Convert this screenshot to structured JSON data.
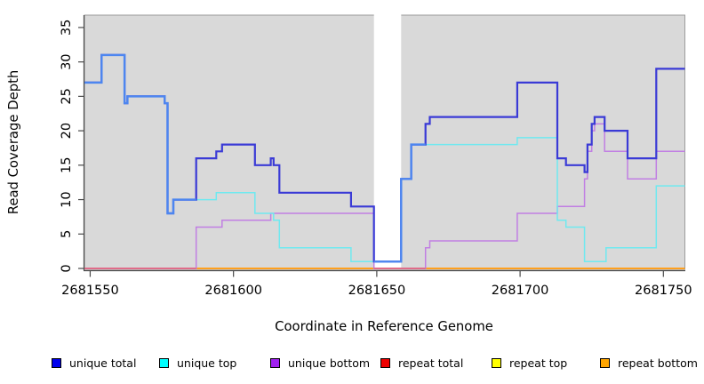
{
  "figure": {
    "background": "#FFFFFF",
    "panel_background": "#D9D9D9",
    "panel_border_color": "#9C9C9C",
    "axis_color": "#4A4A4A",
    "gap_band_color": "#FFFFFF"
  },
  "chart_data": {
    "type": "line",
    "style": "step",
    "title": "",
    "xlabel": "Coordinate in Reference Genome",
    "ylabel": "Read Coverage Depth",
    "xlim": [
      2681548,
      2681757.5
    ],
    "ylim": [
      0,
      36.8
    ],
    "x_ticks": [
      2681550,
      2681600,
      2681650,
      2681700,
      2681750
    ],
    "y_ticks": [
      0,
      5,
      10,
      15,
      20,
      25,
      30,
      35
    ],
    "grid": false,
    "legend_position": "bottom",
    "gap_region": {
      "from": 2681649,
      "to": 2681658.5
    },
    "series": [
      {
        "name": "unique total",
        "color": "#3A3AD6",
        "overlap_color": "#4D86F0",
        "overlap_ranges": [
          [
            2681548,
            2681587
          ],
          [
            2681649,
            2681667
          ]
        ],
        "breaks": [
          [
            2681548,
            27
          ],
          [
            2681554,
            31
          ],
          [
            2681562,
            24
          ],
          [
            2681563,
            25
          ],
          [
            2681576,
            24
          ],
          [
            2681577,
            8
          ],
          [
            2681579,
            10
          ],
          [
            2681587,
            16
          ],
          [
            2681594,
            17
          ],
          [
            2681596,
            18
          ],
          [
            2681607.5,
            15
          ],
          [
            2681613,
            16
          ],
          [
            2681614,
            15
          ],
          [
            2681616,
            11
          ],
          [
            2681641,
            9
          ],
          [
            2681649,
            1
          ],
          [
            2681658.5,
            13
          ],
          [
            2681662,
            18
          ],
          [
            2681667,
            21
          ],
          [
            2681668.5,
            22
          ],
          [
            2681699,
            27
          ],
          [
            2681713,
            16
          ],
          [
            2681716,
            15
          ],
          [
            2681722.5,
            14
          ],
          [
            2681723.5,
            18
          ],
          [
            2681725,
            21
          ],
          [
            2681726,
            22
          ],
          [
            2681729.5,
            20
          ],
          [
            2681737.5,
            16
          ],
          [
            2681747.5,
            29
          ]
        ]
      },
      {
        "name": "unique top",
        "color": "#6FE9F0",
        "breaks": [
          [
            2681548,
            27
          ],
          [
            2681554,
            31
          ],
          [
            2681562,
            24
          ],
          [
            2681563,
            25
          ],
          [
            2681576,
            24
          ],
          [
            2681577,
            8
          ],
          [
            2681579,
            10
          ],
          [
            2681594,
            11
          ],
          [
            2681607.5,
            8
          ],
          [
            2681614,
            7
          ],
          [
            2681616,
            3
          ],
          [
            2681641,
            1
          ],
          [
            2681658.5,
            13
          ],
          [
            2681662,
            18
          ],
          [
            2681699,
            19
          ],
          [
            2681713,
            7
          ],
          [
            2681716,
            6
          ],
          [
            2681722.5,
            1
          ],
          [
            2681730,
            3
          ],
          [
            2681747.5,
            12
          ]
        ]
      },
      {
        "name": "unique bottom",
        "color": "#C17FE3",
        "breaks": [
          [
            2681548,
            0
          ],
          [
            2681587,
            6
          ],
          [
            2681596,
            7
          ],
          [
            2681613,
            8
          ],
          [
            2681649,
            0
          ],
          [
            2681667,
            3
          ],
          [
            2681668.5,
            4
          ],
          [
            2681699,
            8
          ],
          [
            2681713,
            9
          ],
          [
            2681722.5,
            13
          ],
          [
            2681723.5,
            17
          ],
          [
            2681725,
            20
          ],
          [
            2681726,
            21
          ],
          [
            2681729.5,
            17
          ],
          [
            2681737.5,
            13
          ],
          [
            2681747.5,
            17
          ]
        ]
      },
      {
        "name": "repeat total",
        "color": "#EE0000",
        "breaks": [
          [
            2681548,
            0
          ]
        ]
      },
      {
        "name": "repeat top",
        "color": "#FFFF00",
        "breaks": [
          [
            2681548,
            0
          ]
        ]
      },
      {
        "name": "repeat bottom",
        "color": "#FFA01E",
        "breaks": [
          [
            2681548,
            0
          ]
        ]
      }
    ],
    "zero_overlap_segments": {
      "comment_color_of_unique_bottom_at_zero_over_repeat_lines": true,
      "color": "#E0608C",
      "ranges": [
        [
          2681548,
          2681587
        ],
        [
          2681649,
          2681667
        ]
      ]
    }
  },
  "legend": {
    "items": [
      {
        "label": "unique total",
        "swatch_color": "#0000EE"
      },
      {
        "label": "unique top",
        "swatch_color": "#00FFFF"
      },
      {
        "label": "unique bottom",
        "swatch_color": "#A020F0"
      },
      {
        "label": "repeat total",
        "swatch_color": "#EE0000"
      },
      {
        "label": "repeat top",
        "swatch_color": "#FFFF00"
      },
      {
        "label": "repeat bottom",
        "swatch_color": "#FFA500"
      }
    ]
  }
}
